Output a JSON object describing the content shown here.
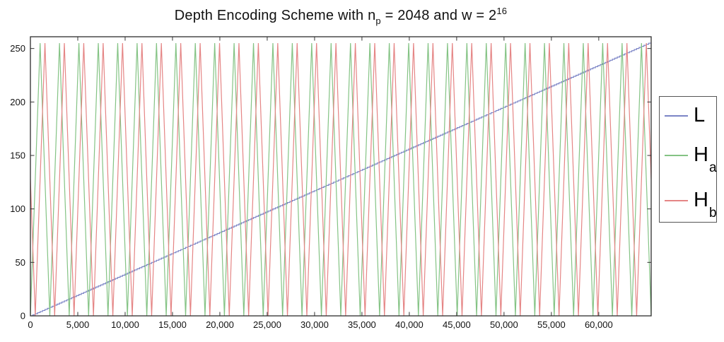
{
  "title_parts": {
    "prefix": "Depth Encoding Scheme with n",
    "sub": "p",
    "mid": " = 2048 and w = 2",
    "sup": "16"
  },
  "legend": {
    "position": "outside-right",
    "items": [
      {
        "label": "L",
        "sub": "",
        "color": "#7b84c6"
      },
      {
        "label": "H",
        "sub": "a",
        "color": "#84c384"
      },
      {
        "label": "H",
        "sub": "b",
        "color": "#e58585"
      }
    ]
  },
  "chart_data": {
    "type": "line",
    "title": "Depth Encoding Scheme with n_p = 2048 and w = 2^16",
    "xlabel": "",
    "ylabel": "",
    "grid": false,
    "xlim": [
      0,
      65535
    ],
    "ylim": [
      0,
      261
    ],
    "xtick_values": [
      0,
      5000,
      10000,
      15000,
      20000,
      25000,
      30000,
      35000,
      40000,
      45000,
      50000,
      55000,
      60000
    ],
    "xtick_labels": [
      "0",
      "5,000",
      "10,000",
      "15,000",
      "20,000",
      "25,000",
      "30,000",
      "35,000",
      "40,000",
      "45,000",
      "50,000",
      "55,000",
      "60,000"
    ],
    "ytick_values": [
      0,
      50,
      100,
      150,
      200,
      250
    ],
    "ytick_labels": [
      "0",
      "50",
      "100",
      "150",
      "200",
      "250"
    ],
    "legend_position": "outside-right",
    "series": [
      {
        "name": "L",
        "color": "#7b84c6",
        "kind": "staircase",
        "x_start": 0,
        "x_end": 65535,
        "step": 256,
        "y_start": 0,
        "y_end": 255,
        "description": "Linear depth ramp L(d)=floor(d/256): staircase rising 0 to 255 across the full 16-bit range 0..65535"
      },
      {
        "name": "H_a",
        "color": "#84c384",
        "kind": "triangle",
        "period": 2048,
        "phase": 0,
        "min": 0,
        "max": 255,
        "description": "Triangle wave, period 2048: zeros at d=2048k, peaks of 255 at d=1024+2048k (32 periods across 0..65535)"
      },
      {
        "name": "H_b",
        "color": "#e58585",
        "kind": "triangle",
        "period": 2048,
        "phase": 512,
        "min": 0,
        "max": 255,
        "description": "Triangle wave, period 2048, shifted a quarter period: starts at 128 falling, zeros at d=512+2048k, peaks of 255 at d=1536+2048k"
      }
    ]
  }
}
